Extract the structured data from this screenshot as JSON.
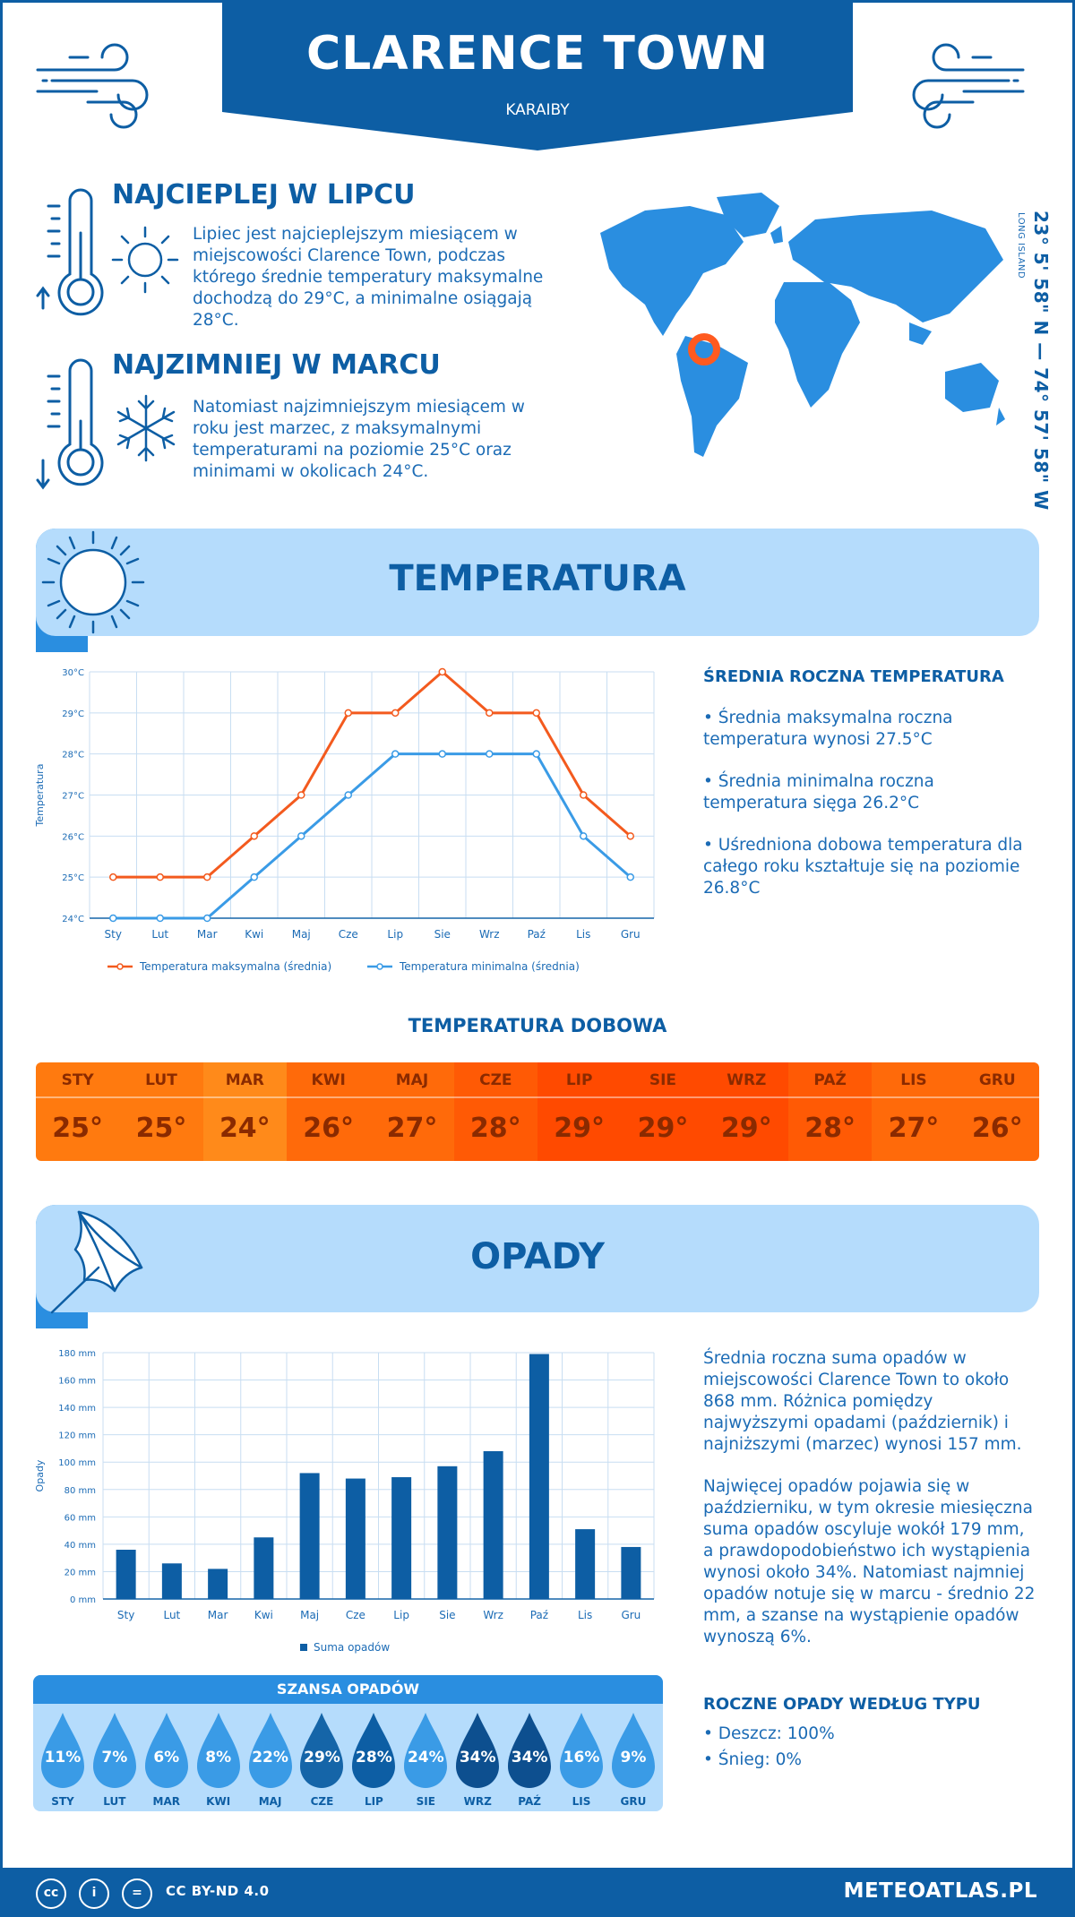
{
  "header": {
    "title": "CLARENCE TOWN",
    "subtitle": "KARAIBY"
  },
  "coords": {
    "text": "23° 5' 58\" N — 74° 57' 58\" W",
    "sub": "LONG ISLAND"
  },
  "hottest": {
    "title": "NAJCIEPLEJ W LIPCU",
    "text": "Lipiec jest najcieplejszym miesiącem w miejscowości Clarence Town, podczas którego średnie temperatury maksymalne dochodzą do 29°C, a minimalne osiągają 28°C."
  },
  "coldest": {
    "title": "NAJZIMNIEJ W MARCU",
    "text": "Natomiast najzimniejszym miesiącem w roku jest marzec, z maksymalnymi temperaturami na poziomie 25°C oraz minimami w okolicach 24°C."
  },
  "temperature": {
    "title": "TEMPERATURA",
    "stats_title": "ŚREDNIA ROCZNA TEMPERATURA",
    "stat1": "• Średnia maksymalna roczna temperatura wynosi 27.5°C",
    "stat2": "• Średnia minimalna roczna temperatura sięga 26.2°C",
    "stat3": "• Uśredniona dobowa temperatura dla całego roku kształtuje się na poziomie 26.8°C"
  },
  "daily": {
    "title": "TEMPERATURA DOBOWA",
    "months": [
      "STY",
      "LUT",
      "MAR",
      "KWI",
      "MAJ",
      "CZE",
      "LIP",
      "SIE",
      "WRZ",
      "PAŹ",
      "LIS",
      "GRU"
    ],
    "values": [
      "25°",
      "25°",
      "24°",
      "26°",
      "27°",
      "28°",
      "29°",
      "29°",
      "29°",
      "28°",
      "27°",
      "26°"
    ],
    "colors": [
      "#ff7a0f",
      "#ff7a0f",
      "#ff8a1a",
      "#ff6a0a",
      "#ff6a0a",
      "#ff5a05",
      "#ff4a00",
      "#ff4a00",
      "#ff4a00",
      "#ff5a05",
      "#ff6a0a",
      "#ff6a0a"
    ]
  },
  "precip": {
    "title": "OPADY",
    "text1": "Średnia roczna suma opadów w miejscowości Clarence Town to około 868 mm. Różnica pomiędzy najwyższymi opadami (październik) i najniższymi (marzec) wynosi 157 mm.",
    "text2": "Najwięcej opadów pojawia się w październiku, w tym okresie miesięczna suma opadów oscyluje wokół 179 mm, a prawdopodobieństwo ich wystąpienia wynosi około 34%. Natomiast najmniej opadów notuje się w marcu - średnio 22 mm, a szanse na wystąpienie opadów wynoszą 6%.",
    "type_title": "ROCZNE OPADY WEDŁUG TYPU",
    "type1": "• Deszcz: 100%",
    "type2": "• Śnieg: 0%"
  },
  "chance": {
    "title": "SZANSA OPADÓW",
    "months": [
      "STY",
      "LUT",
      "MAR",
      "KWI",
      "MAJ",
      "CZE",
      "LIP",
      "SIE",
      "WRZ",
      "PAŹ",
      "LIS",
      "GRU"
    ],
    "values": [
      "11%",
      "7%",
      "6%",
      "8%",
      "22%",
      "29%",
      "28%",
      "24%",
      "34%",
      "34%",
      "16%",
      "9%"
    ],
    "colors": [
      "#3a9be6",
      "#3a9be6",
      "#3a9be6",
      "#3a9be6",
      "#3a9be6",
      "#1565a8",
      "#0d5ea4",
      "#3a9be6",
      "#0d4f8f",
      "#0d4f8f",
      "#3a9be6",
      "#3a9be6"
    ]
  },
  "footer": {
    "license": "CC BY-ND 4.0",
    "site": "METEOATLAS.PL",
    "cc1": "cc",
    "cc2": "i",
    "cc3": "="
  },
  "chart_data": [
    {
      "type": "line",
      "x": [
        "Sty",
        "Lut",
        "Mar",
        "Kwi",
        "Maj",
        "Cze",
        "Lip",
        "Sie",
        "Wrz",
        "Paź",
        "Lis",
        "Gru"
      ],
      "series": [
        {
          "name": "Temperatura maksymalna (średnia)",
          "values": [
            25,
            25,
            25,
            26,
            27,
            29,
            29,
            30,
            29,
            29,
            27,
            26
          ],
          "color": "#f35a1e"
        },
        {
          "name": "Temperatura minimalna (średnia)",
          "values": [
            24,
            24,
            24,
            25,
            26,
            27,
            28,
            28,
            28,
            28,
            26,
            25
          ],
          "color": "#3a9be6"
        }
      ],
      "ylabel": "Temperatura",
      "yticks": [
        "24°C",
        "25°C",
        "26°C",
        "27°C",
        "28°C",
        "29°C",
        "30°C"
      ],
      "ylim": [
        24,
        30
      ],
      "grid": true,
      "legend": "bottom"
    },
    {
      "type": "bar",
      "x": [
        "Sty",
        "Lut",
        "Mar",
        "Kwi",
        "Maj",
        "Cze",
        "Lip",
        "Sie",
        "Wrz",
        "Paź",
        "Lis",
        "Gru"
      ],
      "series": [
        {
          "name": "Suma opadów",
          "values": [
            36,
            26,
            22,
            45,
            92,
            88,
            89,
            97,
            108,
            179,
            51,
            38
          ],
          "color": "#0d5ea4"
        }
      ],
      "ylabel": "Opady",
      "yticks": [
        "0 mm",
        "20 mm",
        "40 mm",
        "60 mm",
        "80 mm",
        "100 mm",
        "120 mm",
        "140 mm",
        "160 mm",
        "180 mm"
      ],
      "ylim": [
        0,
        180
      ],
      "grid": true,
      "legend": "bottom"
    }
  ]
}
